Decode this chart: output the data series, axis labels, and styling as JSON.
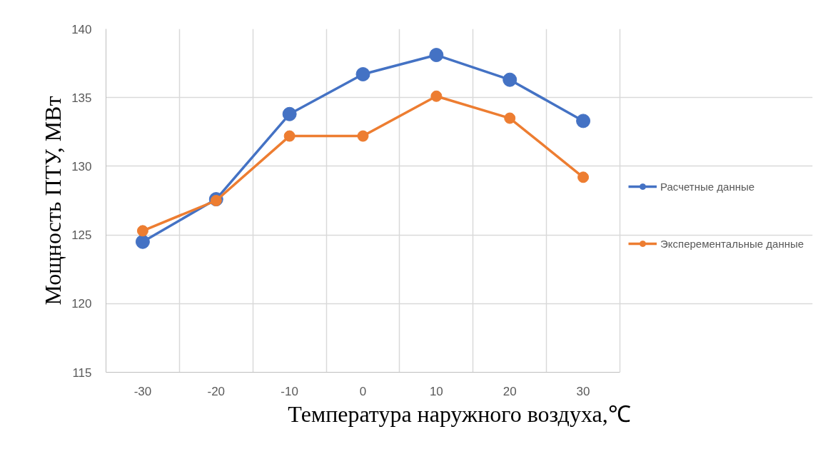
{
  "chart_data": {
    "type": "line",
    "xlabel": "Температура наружного воздуха,℃",
    "ylabel": "Мощность ПТУ, МВт",
    "categories": [
      "-30",
      "-20",
      "-10",
      "0",
      "10",
      "20",
      "30"
    ],
    "series": [
      {
        "name": "Расчетные данные",
        "color": "#4472c4",
        "values": [
          124.5,
          127.6,
          133.8,
          136.7,
          138.1,
          136.3,
          133.3
        ]
      },
      {
        "name": "Эксперементальные данные",
        "color": "#ed7d31",
        "values": [
          125.3,
          127.5,
          132.2,
          132.2,
          135.1,
          133.5,
          129.2
        ]
      }
    ],
    "ylim": [
      115,
      140
    ],
    "yticks": [
      115,
      120,
      125,
      130,
      135,
      140
    ],
    "grid": true,
    "legend": "right",
    "marker": "circle",
    "line_style": "solid"
  }
}
